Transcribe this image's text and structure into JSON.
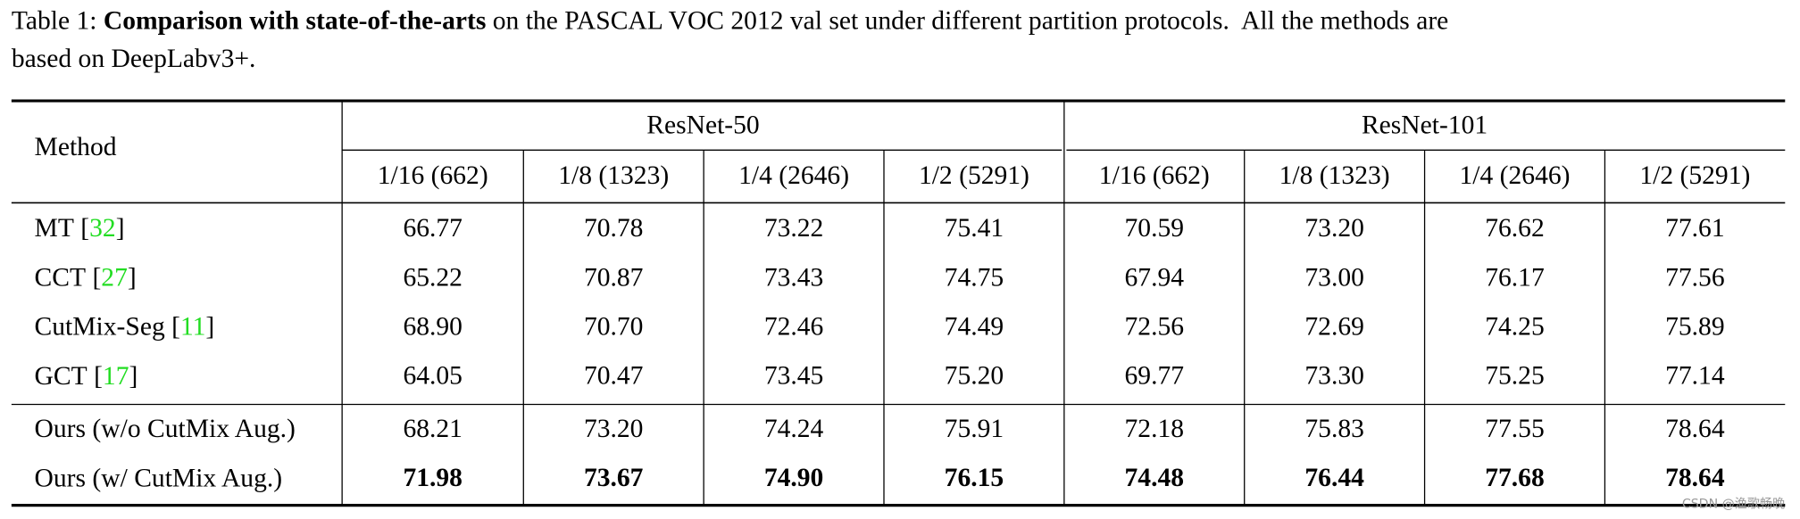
{
  "caption": {
    "label": "Table 1:",
    "bold": "Comparison with state-of-the-arts",
    "text": "on the PASCAL VOC 2012 val set under different partition protocols.  All the methods are",
    "text2": "based on DeepLabv3+."
  },
  "table": {
    "method_header": "Method",
    "groups": [
      "ResNet-50",
      "ResNet-101"
    ],
    "partitions": [
      "1/16 (662)",
      "1/8 (1323)",
      "1/4 (2646)",
      "1/2 (5291)",
      "1/16 (662)",
      "1/8 (1323)",
      "1/4 (2646)",
      "1/2 (5291)"
    ],
    "bold_row": 5,
    "rows": [
      {
        "method": "MT",
        "cite": [
          "[",
          "32",
          "]"
        ],
        "values": [
          "66.77",
          "70.78",
          "73.22",
          "75.41",
          "70.59",
          "73.20",
          "76.62",
          "77.61"
        ]
      },
      {
        "method": "CCT",
        "cite": [
          "[",
          "27",
          "]"
        ],
        "values": [
          "65.22",
          "70.87",
          "73.43",
          "74.75",
          "67.94",
          "73.00",
          "76.17",
          "77.56"
        ]
      },
      {
        "method": "CutMix-Seg",
        "cite": [
          "[",
          "11",
          "]"
        ],
        "values": [
          "68.90",
          "70.70",
          "72.46",
          "74.49",
          "72.56",
          "72.69",
          "74.25",
          "75.89"
        ]
      },
      {
        "method": "GCT",
        "cite": [
          "[",
          "17",
          "]"
        ],
        "values": [
          "64.05",
          "70.47",
          "73.45",
          "75.20",
          "69.77",
          "73.30",
          "75.25",
          "77.14"
        ]
      },
      {
        "method": "Ours (w/o CutMix Aug.)",
        "values": [
          "68.21",
          "73.20",
          "74.24",
          "75.91",
          "72.18",
          "75.83",
          "77.55",
          "78.64"
        ]
      },
      {
        "method": "Ours (w/ CutMix Aug.)",
        "values": [
          "71.98",
          "73.67",
          "74.90",
          "76.15",
          "74.48",
          "76.44",
          "77.68",
          "78.64"
        ]
      }
    ]
  },
  "watermark": "CSDN @渔歌畅晚"
}
